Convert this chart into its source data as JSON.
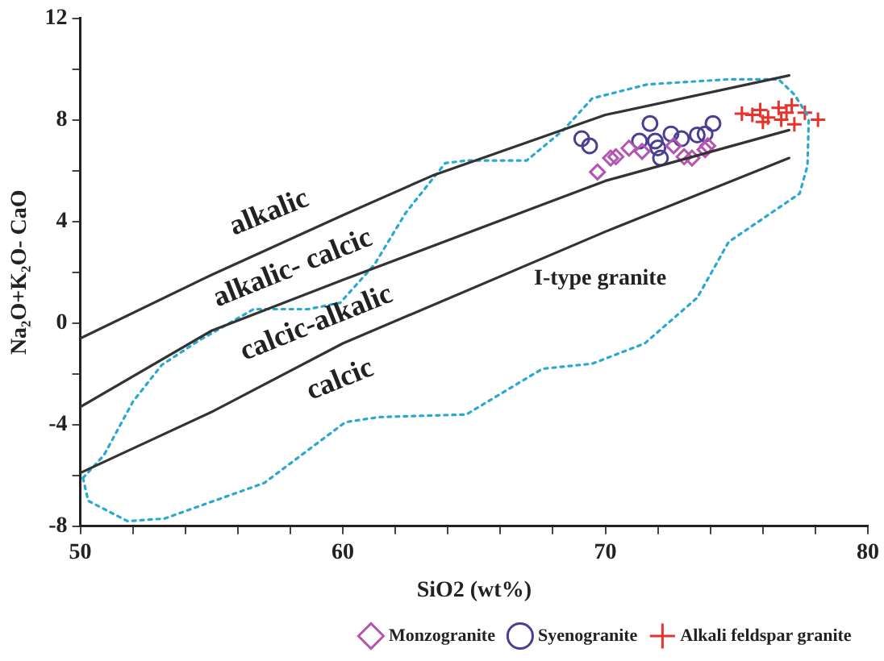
{
  "chart_data": {
    "type": "scatter",
    "xlabel": "SiO2 (wt%)",
    "ylabel": "Na₂O+K₂O- CaO",
    "xlim": [
      50,
      80
    ],
    "ylim": [
      -8,
      12
    ],
    "xticks": [
      50,
      {
        "value": 52,
        "label": null
      },
      {
        "value": 54,
        "label": null
      },
      {
        "value": 56,
        "label": null
      },
      {
        "value": 58,
        "label": null
      },
      60,
      {
        "value": 62,
        "label": null
      },
      {
        "value": 64,
        "label": null
      },
      {
        "value": 66,
        "label": null
      },
      {
        "value": 68,
        "label": null
      },
      70,
      {
        "value": 72,
        "label": null
      },
      {
        "value": 74,
        "label": null
      },
      {
        "value": 76,
        "label": null
      },
      {
        "value": 78,
        "label": null
      },
      80
    ],
    "yticks": [
      -8,
      {
        "value": -6,
        "label": null
      },
      -4,
      {
        "value": -2,
        "label": null
      },
      0,
      {
        "value": 2,
        "label": null
      },
      4,
      {
        "value": 6,
        "label": null
      },
      8,
      {
        "value": 10,
        "label": null
      },
      12
    ],
    "grid": false,
    "legend": "bottom right",
    "annotations": [
      "alkalic",
      "alkalic- calcic",
      "calcic-alkalic",
      "calcic",
      "I-type granite"
    ],
    "series": [
      {
        "type": "line",
        "color": "#333333",
        "marker": "none",
        "line_style": "solid",
        "x": [
          50,
          55,
          60,
          63.4,
          70,
          77
        ],
        "values": [
          -0.6,
          1.9,
          4.25,
          5.8,
          8.2,
          9.75
        ]
      },
      {
        "type": "line",
        "color": "#333333",
        "marker": "none",
        "line_style": "solid",
        "x": [
          50,
          55,
          60,
          70,
          77
        ],
        "values": [
          -3.3,
          -0.3,
          1.7,
          5.6,
          7.6
        ]
      },
      {
        "type": "line",
        "color": "#333333",
        "marker": "none",
        "line_style": "solid",
        "x": [
          50,
          55,
          60,
          70,
          77
        ],
        "values": [
          -5.9,
          -3.5,
          -0.8,
          3.6,
          6.5
        ]
      },
      {
        "type": "line",
        "color": "#2aa8d0",
        "marker": "none",
        "line_style": "dotted",
        "x": [
          50.1,
          50.9,
          52,
          53.1,
          54.5,
          56.6,
          58.7,
          59.9,
          61.2,
          62.4,
          63.9,
          64.7,
          67,
          68.4,
          69.5,
          71.6,
          74.7,
          76.6,
          77.2,
          77.75
        ],
        "values": [
          -6.1,
          -5.2,
          -3.1,
          -1.65,
          -0.7,
          0.55,
          0.55,
          0.8,
          2.3,
          4.35,
          6.3,
          6.4,
          6.4,
          7.6,
          8.85,
          9.4,
          9.6,
          9.6,
          9.0,
          8.1
        ]
      },
      {
        "type": "line",
        "color": "#2aa8d0",
        "marker": "none",
        "line_style": "dotted",
        "x": [
          50.1,
          50.3,
          51.8,
          53.2,
          57,
          60.1,
          61.4,
          64.7,
          67.6,
          69.5,
          71.5,
          73.5,
          74.7,
          77.4,
          77.7,
          77.75
        ],
        "values": [
          -6.1,
          -7.0,
          -7.8,
          -7.7,
          -6.3,
          -3.9,
          -3.7,
          -3.6,
          -1.8,
          -1.6,
          -0.8,
          1.0,
          3.2,
          5.1,
          6.2,
          8.1
        ]
      },
      {
        "type": "scatter",
        "name": "Monzogranite",
        "color": "#b455b0",
        "marker": "diamond",
        "x": [
          69.7,
          70.2,
          70.4,
          70.9,
          71.4,
          72.6,
          73.0,
          73.3,
          73.8,
          73.9
        ],
        "values": [
          5.95,
          6.5,
          6.55,
          6.89,
          6.76,
          6.98,
          6.55,
          6.5,
          6.83,
          6.98
        ]
      },
      {
        "type": "scatter",
        "name": "Syenogranite",
        "color": "#4a3f95",
        "marker": "circle",
        "x": [
          69.1,
          69.4,
          71.7,
          71.3,
          71.9,
          72.5,
          72.0,
          72.1,
          72.9,
          73.5,
          73.8,
          74.1
        ],
        "values": [
          7.26,
          6.98,
          7.86,
          7.17,
          7.17,
          7.45,
          6.9,
          6.5,
          7.26,
          7.41,
          7.45,
          7.86
        ]
      },
      {
        "type": "scatter",
        "name": "Alkali feldspar granite",
        "color": "#e8322b",
        "marker": "cross",
        "x": [
          75.2,
          75.6,
          75.9,
          76.2,
          76.6,
          76.9,
          77.1,
          77.2,
          77.6,
          78.1,
          76.0,
          76.7
        ],
        "values": [
          8.25,
          8.2,
          8.39,
          8.1,
          8.48,
          8.29,
          8.57,
          7.83,
          8.29,
          8.01,
          7.92,
          8.01
        ]
      }
    ]
  }
}
